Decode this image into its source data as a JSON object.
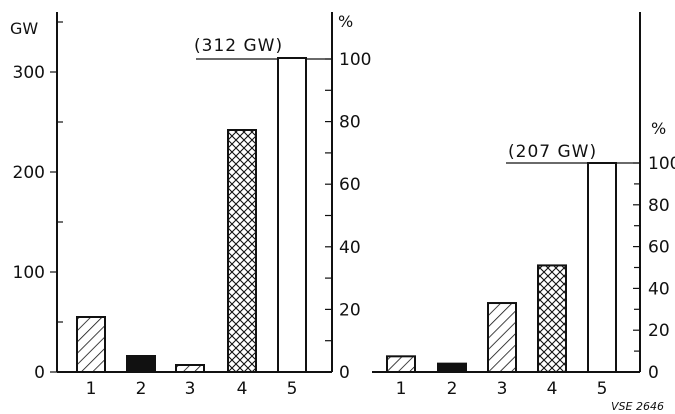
{
  "chart_data": [
    {
      "type": "bar",
      "categories": [
        "1",
        "2",
        "3",
        "4",
        "5"
      ],
      "values": [
        55,
        16,
        7,
        242,
        314
      ],
      "fills": [
        "hatch-diag",
        "solid",
        "hatch-diag",
        "crosshatch",
        "empty"
      ],
      "left_axis": {
        "unit": "GW",
        "ylim": [
          0,
          400
        ],
        "ticks": [
          0,
          100,
          200,
          300
        ],
        "minor_ticks": [
          50,
          150,
          250,
          350
        ]
      },
      "right_axis": {
        "unit": "%",
        "ylim": [
          0,
          100
        ],
        "ticks": [
          0,
          20,
          40,
          60,
          80,
          100
        ],
        "minor_ticks": [
          10,
          30,
          50,
          70,
          90
        ]
      },
      "reference_value": 312,
      "reference_label": "(312 GW)",
      "grid": false
    },
    {
      "type": "bar",
      "categories": [
        "1",
        "2",
        "3",
        "4",
        "5"
      ],
      "values": [
        7.5,
        4,
        33,
        51,
        100
      ],
      "fills": [
        "hatch-diag",
        "solid",
        "hatch-diag",
        "crosshatch",
        "empty"
      ],
      "right_axis": {
        "unit": "%",
        "ylim": [
          0,
          100
        ],
        "ticks": [
          0,
          20,
          40,
          60,
          80,
          100
        ],
        "minor_ticks": [
          10,
          30,
          50,
          70,
          90
        ]
      },
      "reference_value": 100,
      "reference_label": "(207 GW)",
      "grid": false
    }
  ],
  "credit": "VSE 2646"
}
